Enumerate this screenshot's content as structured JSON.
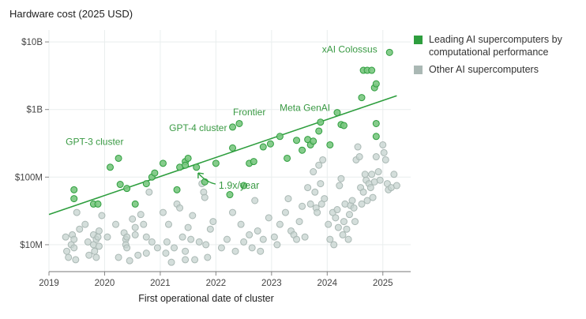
{
  "chart_data": {
    "type": "scatter",
    "title": "Hardware cost (2025 USD)",
    "xlabel": "First operational date of cluster",
    "ylabel": "",
    "y_scale": "log",
    "xlim": [
      2019,
      2025.5
    ],
    "ylim": [
      4000000,
      15000000000
    ],
    "x_ticks": [
      2019,
      2020,
      2021,
      2022,
      2023,
      2024,
      2025
    ],
    "x_tick_labels": [
      "2019",
      "2020",
      "2021",
      "2022",
      "2023",
      "2024",
      "2025"
    ],
    "y_ticks": [
      10000000,
      100000000,
      1000000000,
      10000000000
    ],
    "y_tick_labels": [
      "$10M",
      "$100M",
      "$1B",
      "$10B"
    ],
    "grid": true,
    "legend_position": "top-right",
    "colors": {
      "leading": "#2e9e3e",
      "leading_fill": "#79c77f",
      "other": "#aab8b4",
      "other_fill": "#c5d3cf",
      "trend": "#2e9e3e",
      "annotation": "#3a9a44",
      "grid": "#e9eeee"
    },
    "trend_line": {
      "label": "1.9x/year",
      "x": [
        2019,
        2025.25
      ],
      "y": [
        28000000,
        1600000000
      ]
    },
    "series": [
      {
        "name": "Leading AI supercomputers by computational performance",
        "color": "#2e9e3e",
        "points": [
          [
            2019.45,
            65000000
          ],
          [
            2019.45,
            48000000
          ],
          [
            2019.8,
            40000000
          ],
          [
            2019.88,
            40000000
          ],
          [
            2020.1,
            140000000
          ],
          [
            2020.25,
            190000000
          ],
          [
            2020.28,
            78000000
          ],
          [
            2020.4,
            68000000
          ],
          [
            2020.55,
            40000000
          ],
          [
            2020.75,
            80000000
          ],
          [
            2020.85,
            100000000
          ],
          [
            2020.9,
            115000000
          ],
          [
            2021.05,
            160000000
          ],
          [
            2021.3,
            65000000
          ],
          [
            2021.35,
            140000000
          ],
          [
            2021.45,
            170000000
          ],
          [
            2021.45,
            150000000
          ],
          [
            2021.5,
            190000000
          ],
          [
            2021.65,
            140000000
          ],
          [
            2021.8,
            85000000
          ],
          [
            2022.0,
            160000000
          ],
          [
            2022.25,
            55000000
          ],
          [
            2022.3,
            270000000
          ],
          [
            2022.3,
            550000000
          ],
          [
            2022.42,
            620000000
          ],
          [
            2022.5,
            75000000
          ],
          [
            2022.6,
            160000000
          ],
          [
            2022.68,
            170000000
          ],
          [
            2022.85,
            280000000
          ],
          [
            2022.98,
            310000000
          ],
          [
            2023.15,
            400000000
          ],
          [
            2023.28,
            190000000
          ],
          [
            2023.45,
            350000000
          ],
          [
            2023.55,
            250000000
          ],
          [
            2023.65,
            360000000
          ],
          [
            2023.7,
            300000000
          ],
          [
            2023.75,
            340000000
          ],
          [
            2023.85,
            480000000
          ],
          [
            2023.88,
            650000000
          ],
          [
            2024.05,
            300000000
          ],
          [
            2024.18,
            900000000
          ],
          [
            2024.25,
            600000000
          ],
          [
            2024.3,
            580000000
          ],
          [
            2024.62,
            1500000000
          ],
          [
            2024.65,
            3800000000
          ],
          [
            2024.72,
            3800000000
          ],
          [
            2024.8,
            3800000000
          ],
          [
            2024.85,
            2100000000
          ],
          [
            2024.88,
            2400000000
          ],
          [
            2024.88,
            400000000
          ],
          [
            2024.88,
            620000000
          ],
          [
            2025.12,
            7000000000
          ]
        ]
      },
      {
        "name": "Other AI supercomputers",
        "color": "#aab8b4",
        "points": [
          [
            2019.3,
            13000000
          ],
          [
            2019.32,
            8000000
          ],
          [
            2019.35,
            6500000
          ],
          [
            2019.4,
            10000000
          ],
          [
            2019.42,
            14000000
          ],
          [
            2019.45,
            12000000
          ],
          [
            2019.45,
            9000000
          ],
          [
            2019.48,
            6000000
          ],
          [
            2019.5,
            30000000
          ],
          [
            2019.55,
            17000000
          ],
          [
            2019.65,
            20000000
          ],
          [
            2019.7,
            11000000
          ],
          [
            2019.72,
            7000000
          ],
          [
            2019.8,
            14000000
          ],
          [
            2019.8,
            10000000
          ],
          [
            2019.82,
            8000000
          ],
          [
            2019.85,
            12000000
          ],
          [
            2019.85,
            6500000
          ],
          [
            2019.88,
            13000000
          ],
          [
            2019.9,
            9500000
          ],
          [
            2019.9,
            16000000
          ],
          [
            2019.95,
            27000000
          ],
          [
            2020.05,
            13000000
          ],
          [
            2020.2,
            20000000
          ],
          [
            2020.25,
            6500000
          ],
          [
            2020.35,
            15000000
          ],
          [
            2020.38,
            12000000
          ],
          [
            2020.38,
            10000000
          ],
          [
            2020.4,
            9000000
          ],
          [
            2020.4,
            13000000
          ],
          [
            2020.45,
            5800000
          ],
          [
            2020.5,
            24000000
          ],
          [
            2020.55,
            18000000
          ],
          [
            2020.55,
            14000000
          ],
          [
            2020.6,
            7000000
          ],
          [
            2020.65,
            28000000
          ],
          [
            2020.7,
            20000000
          ],
          [
            2020.75,
            13000000
          ],
          [
            2020.75,
            7500000
          ],
          [
            2020.8,
            60000000
          ],
          [
            2020.85,
            11000000
          ],
          [
            2020.95,
            9000000
          ],
          [
            2021.05,
            30000000
          ],
          [
            2021.1,
            7500000
          ],
          [
            2021.12,
            11000000
          ],
          [
            2021.15,
            20000000
          ],
          [
            2021.2,
            5500000
          ],
          [
            2021.25,
            9000000
          ],
          [
            2021.3,
            40000000
          ],
          [
            2021.35,
            35000000
          ],
          [
            2021.4,
            13000000
          ],
          [
            2021.45,
            8000000
          ],
          [
            2021.45,
            6000000
          ],
          [
            2021.5,
            18000000
          ],
          [
            2021.55,
            12000000
          ],
          [
            2021.58,
            27000000
          ],
          [
            2021.62,
            6000000
          ],
          [
            2021.7,
            11000000
          ],
          [
            2021.75,
            80000000
          ],
          [
            2021.78,
            60000000
          ],
          [
            2021.8,
            50000000
          ],
          [
            2021.82,
            10000000
          ],
          [
            2021.85,
            6500000
          ],
          [
            2021.9,
            17000000
          ],
          [
            2021.95,
            22000000
          ],
          [
            2022.1,
            9000000
          ],
          [
            2022.2,
            12000000
          ],
          [
            2022.3,
            30000000
          ],
          [
            2022.35,
            8000000
          ],
          [
            2022.45,
            20000000
          ],
          [
            2022.5,
            11000000
          ],
          [
            2022.6,
            14000000
          ],
          [
            2022.65,
            9000000
          ],
          [
            2022.7,
            45000000
          ],
          [
            2022.75,
            16000000
          ],
          [
            2022.8,
            8000000
          ],
          [
            2022.85,
            12000000
          ],
          [
            2022.95,
            25000000
          ],
          [
            2023.05,
            13000000
          ],
          [
            2023.1,
            10000000
          ],
          [
            2023.15,
            20000000
          ],
          [
            2023.25,
            30000000
          ],
          [
            2023.3,
            48000000
          ],
          [
            2023.35,
            16000000
          ],
          [
            2023.4,
            14000000
          ],
          [
            2023.45,
            12000000
          ],
          [
            2023.5,
            22000000
          ],
          [
            2023.55,
            37000000
          ],
          [
            2023.6,
            13000000
          ],
          [
            2023.65,
            70000000
          ],
          [
            2023.7,
            40000000
          ],
          [
            2023.75,
            120000000
          ],
          [
            2023.78,
            60000000
          ],
          [
            2023.8,
            35000000
          ],
          [
            2023.82,
            30000000
          ],
          [
            2023.85,
            150000000
          ],
          [
            2023.88,
            80000000
          ],
          [
            2023.9,
            40000000
          ],
          [
            2023.92,
            180000000
          ],
          [
            2023.95,
            48000000
          ],
          [
            2024.02,
            20000000
          ],
          [
            2024.05,
            12000000
          ],
          [
            2024.1,
            30000000
          ],
          [
            2024.12,
            10000000
          ],
          [
            2024.15,
            25000000
          ],
          [
            2024.18,
            33000000
          ],
          [
            2024.2,
            18000000
          ],
          [
            2024.22,
            75000000
          ],
          [
            2024.25,
            95000000
          ],
          [
            2024.28,
            14000000
          ],
          [
            2024.3,
            22000000
          ],
          [
            2024.32,
            40000000
          ],
          [
            2024.35,
            17000000
          ],
          [
            2024.38,
            12000000
          ],
          [
            2024.4,
            28000000
          ],
          [
            2024.42,
            38000000
          ],
          [
            2024.45,
            45000000
          ],
          [
            2024.48,
            35000000
          ],
          [
            2024.5,
            22000000
          ],
          [
            2024.52,
            180000000
          ],
          [
            2024.55,
            280000000
          ],
          [
            2024.58,
            200000000
          ],
          [
            2024.6,
            70000000
          ],
          [
            2024.62,
            40000000
          ],
          [
            2024.65,
            60000000
          ],
          [
            2024.68,
            110000000
          ],
          [
            2024.7,
            90000000
          ],
          [
            2024.72,
            45000000
          ],
          [
            2024.75,
            80000000
          ],
          [
            2024.78,
            70000000
          ],
          [
            2024.8,
            110000000
          ],
          [
            2024.82,
            50000000
          ],
          [
            2024.85,
            85000000
          ],
          [
            2024.88,
            200000000
          ],
          [
            2024.92,
            120000000
          ],
          [
            2024.95,
            90000000
          ],
          [
            2025.0,
            300000000
          ],
          [
            2025.02,
            230000000
          ],
          [
            2025.05,
            180000000
          ],
          [
            2025.08,
            80000000
          ],
          [
            2025.1,
            65000000
          ],
          [
            2025.15,
            70000000
          ],
          [
            2025.2,
            110000000
          ],
          [
            2025.25,
            75000000
          ]
        ]
      }
    ],
    "annotations": [
      {
        "text": "GPT-3 cluster",
        "x": 2019.3,
        "y": 300000000,
        "anchor": "start"
      },
      {
        "text": "GPT-4 cluster",
        "x": 2022.2,
        "y": 480000000,
        "anchor": "end"
      },
      {
        "text": "Frontier",
        "x": 2022.6,
        "y": 820000000,
        "anchor": "middle"
      },
      {
        "text": "Meta GenAI",
        "x": 2023.6,
        "y": 950000000,
        "anchor": "middle"
      },
      {
        "text": "xAI Colossus",
        "x": 2024.9,
        "y": 7000000000,
        "anchor": "end"
      }
    ]
  },
  "legend": {
    "items": [
      {
        "label": "Leading AI supercomputers by computational performance",
        "color": "#2e9e3e"
      },
      {
        "label": "Other AI supercomputers",
        "color": "#aab8b4"
      }
    ]
  }
}
